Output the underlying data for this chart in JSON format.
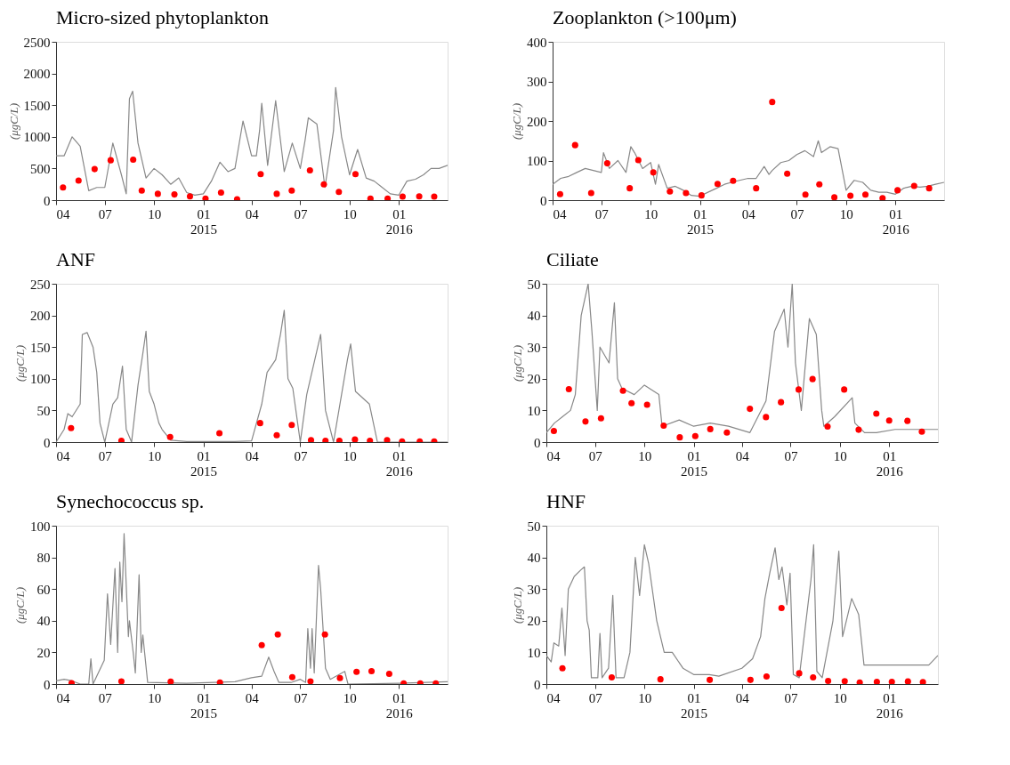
{
  "chart_data": [
    {
      "type": "line",
      "title": "Micro-sized phytoplankton",
      "ylabel": "(μgC/L)",
      "grid": false,
      "xlim": [
        "2014-04-01",
        "2016-04-01"
      ],
      "ylim": [
        0,
        2500
      ],
      "yticks": [
        0,
        500,
        1000,
        1500,
        2000,
        2500
      ],
      "xticks": [
        {
          "value": "2014-04-01",
          "label": "04"
        },
        {
          "value": "2014-07-01",
          "label": "07"
        },
        {
          "value": "2014-10-01",
          "label": "10"
        },
        {
          "value": "2015-01-01",
          "label": "01\n2015"
        },
        {
          "value": "2015-04-01",
          "label": "04"
        },
        {
          "value": "2015-07-01",
          "label": "07"
        },
        {
          "value": "2015-10-01",
          "label": "10"
        },
        {
          "value": "2016-01-01",
          "label": "01\n2016"
        }
      ],
      "series": [
        {
          "color": "#888888",
          "line_style": "solid",
          "x": [
            "2014-04-01",
            "2014-04-16",
            "2014-05-01",
            "2014-05-16",
            "2014-06-01",
            "2014-06-16",
            "2014-07-01",
            "2014-07-16",
            "2014-08-01",
            "2014-08-10",
            "2014-08-16",
            "2014-08-22",
            "2014-09-01",
            "2014-09-16",
            "2014-10-01",
            "2014-10-16",
            "2014-11-01",
            "2014-11-16",
            "2014-12-01",
            "2014-12-16",
            "2015-01-01",
            "2015-01-16",
            "2015-02-01",
            "2015-02-16",
            "2015-03-01",
            "2015-03-16",
            "2015-04-01",
            "2015-04-10",
            "2015-04-16",
            "2015-04-20",
            "2015-05-01",
            "2015-05-16",
            "2015-06-01",
            "2015-06-16",
            "2015-07-01",
            "2015-07-10",
            "2015-07-16",
            "2015-08-01",
            "2015-08-16",
            "2015-09-01",
            "2015-09-05",
            "2015-09-16",
            "2015-10-01",
            "2015-10-16",
            "2015-11-01",
            "2015-11-16",
            "2015-12-01",
            "2015-12-16",
            "2016-01-01",
            "2016-01-16",
            "2016-02-01",
            "2016-02-16",
            "2016-03-01",
            "2016-03-16",
            "2016-04-01"
          ],
          "values": [
            700,
            700,
            1000,
            850,
            150,
            200,
            200,
            900,
            400,
            100,
            1600,
            1720,
            900,
            350,
            500,
            400,
            250,
            350,
            120,
            80,
            100,
            300,
            600,
            450,
            500,
            1250,
            700,
            700,
            1100,
            1530,
            550,
            1570,
            450,
            900,
            500,
            950,
            1300,
            1200,
            200,
            1100,
            1780,
            1000,
            400,
            800,
            350,
            300,
            200,
            100,
            80,
            300,
            330,
            400,
            500,
            500,
            550
          ]
        },
        {
          "type": "scatter",
          "color": "#ff0000",
          "marker": "circle",
          "x": [
            "2014-04-14",
            "2014-05-13",
            "2014-06-12",
            "2014-07-12",
            "2014-08-23",
            "2014-09-08",
            "2014-10-08",
            "2014-11-08",
            "2014-12-07",
            "2015-01-05",
            "2015-02-03",
            "2015-03-05",
            "2015-04-18",
            "2015-05-18",
            "2015-06-15",
            "2015-07-19",
            "2015-08-14",
            "2015-09-11",
            "2015-10-12",
            "2015-11-09",
            "2015-12-11",
            "2016-01-08",
            "2016-02-08",
            "2016-03-07"
          ],
          "values": [
            200,
            310,
            490,
            630,
            640,
            150,
            100,
            90,
            60,
            25,
            120,
            15,
            410,
            100,
            150,
            470,
            250,
            130,
            410,
            25,
            25,
            55,
            60,
            55
          ]
        }
      ]
    },
    {
      "type": "line",
      "title": "Zooplankton (>100μm)",
      "ylabel": "(μgC/L)",
      "grid": false,
      "xlim": [
        "2014-04-01",
        "2016-04-01"
      ],
      "ylim": [
        0,
        400
      ],
      "yticks": [
        0,
        100,
        200,
        300,
        400
      ],
      "xticks": [
        {
          "value": "2014-04-01",
          "label": "04"
        },
        {
          "value": "2014-07-01",
          "label": "07"
        },
        {
          "value": "2014-10-01",
          "label": "10"
        },
        {
          "value": "2015-01-01",
          "label": "01\n2015"
        },
        {
          "value": "2015-04-01",
          "label": "04"
        },
        {
          "value": "2015-07-01",
          "label": "07"
        },
        {
          "value": "2015-10-01",
          "label": "10"
        },
        {
          "value": "2016-01-01",
          "label": "01\n2016"
        }
      ],
      "series": [
        {
          "color": "#888888",
          "line_style": "solid",
          "x": [
            "2014-04-01",
            "2014-04-16",
            "2014-05-01",
            "2014-05-16",
            "2014-06-01",
            "2014-06-16",
            "2014-07-01",
            "2014-07-05",
            "2014-07-16",
            "2014-08-01",
            "2014-08-16",
            "2014-08-25",
            "2014-09-01",
            "2014-09-16",
            "2014-10-01",
            "2014-10-10",
            "2014-10-16",
            "2014-11-01",
            "2014-11-16",
            "2014-12-01",
            "2014-12-16",
            "2015-01-01",
            "2015-01-16",
            "2015-02-01",
            "2015-02-16",
            "2015-03-01",
            "2015-03-16",
            "2015-04-01",
            "2015-04-16",
            "2015-05-01",
            "2015-05-10",
            "2015-05-16",
            "2015-06-01",
            "2015-06-16",
            "2015-07-01",
            "2015-07-16",
            "2015-08-01",
            "2015-08-10",
            "2015-08-16",
            "2015-09-01",
            "2015-09-16",
            "2015-10-01",
            "2015-10-16",
            "2015-11-01",
            "2015-11-16",
            "2015-12-01",
            "2015-12-16",
            "2016-01-01",
            "2016-01-16",
            "2016-02-01",
            "2016-02-16",
            "2016-03-01",
            "2016-03-16",
            "2016-04-01"
          ],
          "values": [
            40,
            55,
            60,
            70,
            80,
            75,
            70,
            120,
            80,
            100,
            70,
            135,
            120,
            80,
            95,
            40,
            90,
            30,
            35,
            25,
            12,
            10,
            20,
            30,
            40,
            45,
            50,
            55,
            55,
            85,
            65,
            75,
            95,
            100,
            115,
            125,
            110,
            150,
            120,
            135,
            130,
            25,
            50,
            45,
            25,
            20,
            20,
            15,
            30,
            35,
            33,
            35,
            40,
            45
          ]
        },
        {
          "type": "scatter",
          "color": "#ff0000",
          "marker": "circle",
          "x": [
            "2014-04-15",
            "2014-05-13",
            "2014-06-12",
            "2014-07-12",
            "2014-08-23",
            "2014-09-08",
            "2014-10-06",
            "2014-11-06",
            "2014-12-06",
            "2015-01-04",
            "2015-02-03",
            "2015-03-04",
            "2015-04-16",
            "2015-05-16",
            "2015-06-13",
            "2015-07-17",
            "2015-08-12",
            "2015-09-09",
            "2015-10-09",
            "2015-11-06",
            "2015-12-08",
            "2016-01-05",
            "2016-02-05",
            "2016-03-04"
          ],
          "values": [
            15,
            139,
            18,
            93,
            30,
            101,
            70,
            22,
            18,
            12,
            41,
            49,
            30,
            248,
            67,
            14,
            40,
            7,
            11,
            14,
            5,
            25,
            36,
            30
          ]
        }
      ]
    },
    {
      "type": "line",
      "title": "ANF",
      "ylabel": "(μgC/L)",
      "grid": false,
      "xlim": [
        "2014-04-01",
        "2016-04-01"
      ],
      "ylim": [
        0,
        250
      ],
      "yticks": [
        0,
        50,
        100,
        150,
        200,
        250
      ],
      "xticks": [
        {
          "value": "2014-04-01",
          "label": "04"
        },
        {
          "value": "2014-07-01",
          "label": "07"
        },
        {
          "value": "2014-10-01",
          "label": "10"
        },
        {
          "value": "2015-01-01",
          "label": "01\n2015"
        },
        {
          "value": "2015-04-01",
          "label": "04"
        },
        {
          "value": "2015-07-01",
          "label": "07"
        },
        {
          "value": "2015-10-01",
          "label": "10"
        },
        {
          "value": "2016-01-01",
          "label": "01\n2016"
        }
      ],
      "series": [
        {
          "color": "#888888",
          "line_style": "solid",
          "x": [
            "2014-04-01",
            "2014-04-16",
            "2014-04-23",
            "2014-05-01",
            "2014-05-16",
            "2014-05-20",
            "2014-05-29",
            "2014-06-09",
            "2014-06-16",
            "2014-06-22",
            "2014-07-01",
            "2014-07-16",
            "2014-07-25",
            "2014-08-03",
            "2014-08-10",
            "2014-08-20",
            "2014-09-01",
            "2014-09-10",
            "2014-09-16",
            "2014-09-22",
            "2014-10-01",
            "2014-10-10",
            "2014-10-16",
            "2014-11-01",
            "2014-12-01",
            "2015-03-01",
            "2015-04-01",
            "2015-04-20",
            "2015-04-30",
            "2015-05-16",
            "2015-05-25",
            "2015-06-01",
            "2015-06-08",
            "2015-06-17",
            "2015-07-01",
            "2015-07-13",
            "2015-08-08",
            "2015-08-17",
            "2015-09-01",
            "2015-09-27",
            "2015-10-03",
            "2015-10-12",
            "2015-11-07",
            "2015-11-22",
            "2016-04-01"
          ],
          "values": [
            0,
            20,
            45,
            40,
            60,
            170,
            173,
            150,
            110,
            30,
            0,
            60,
            70,
            120,
            20,
            0,
            90,
            140,
            175,
            80,
            60,
            30,
            20,
            3,
            1,
            1,
            2,
            60,
            110,
            130,
            170,
            208,
            100,
            85,
            0,
            75,
            170,
            50,
            0,
            130,
            155,
            80,
            60,
            0,
            0
          ]
        },
        {
          "type": "scatter",
          "color": "#ff0000",
          "marker": "circle",
          "x": [
            "2014-04-29",
            "2014-08-01",
            "2014-10-31",
            "2015-01-31",
            "2015-04-17",
            "2015-05-18",
            "2015-06-15",
            "2015-07-21",
            "2015-08-17",
            "2015-09-12",
            "2015-10-11",
            "2015-11-08",
            "2015-12-10",
            "2016-01-07",
            "2016-02-09",
            "2016-03-07"
          ],
          "values": [
            22,
            2,
            8,
            14,
            30,
            11,
            27,
            3,
            2,
            2,
            4,
            2,
            3,
            1,
            1,
            1
          ]
        }
      ]
    },
    {
      "type": "line",
      "title": "Ciliate",
      "ylabel": "(μgC/L)",
      "grid": false,
      "xlim": [
        "2014-04-01",
        "2016-04-01"
      ],
      "ylim": [
        0,
        50
      ],
      "yticks": [
        0,
        10,
        20,
        30,
        40,
        50
      ],
      "xticks": [
        {
          "value": "2014-04-01",
          "label": "04"
        },
        {
          "value": "2014-07-01",
          "label": "07"
        },
        {
          "value": "2014-10-01",
          "label": "10"
        },
        {
          "value": "2015-01-01",
          "label": "01\n2015"
        },
        {
          "value": "2015-04-01",
          "label": "04"
        },
        {
          "value": "2015-07-01",
          "label": "07"
        },
        {
          "value": "2015-10-01",
          "label": "10"
        },
        {
          "value": "2016-01-01",
          "label": "01\n2016"
        }
      ],
      "series": [
        {
          "color": "#888888",
          "line_style": "solid",
          "x": [
            "2014-04-01",
            "2014-04-16",
            "2014-05-01",
            "2014-05-16",
            "2014-05-25",
            "2014-06-05",
            "2014-06-18",
            "2014-06-25",
            "2014-07-05",
            "2014-07-10",
            "2014-07-27",
            "2014-08-06",
            "2014-08-12",
            "2014-08-20",
            "2014-09-12",
            "2014-10-01",
            "2014-10-28",
            "2014-11-03",
            "2014-12-05",
            "2015-01-01",
            "2015-02-01",
            "2015-03-07",
            "2015-04-16",
            "2015-05-01",
            "2015-05-16",
            "2015-06-01",
            "2015-06-19",
            "2015-06-26",
            "2015-07-04",
            "2015-07-10",
            "2015-07-21",
            "2015-08-05",
            "2015-08-18",
            "2015-08-28",
            "2015-09-01",
            "2015-09-21",
            "2015-10-24",
            "2015-10-29",
            "2015-11-16",
            "2015-12-08",
            "2016-01-12",
            "2016-02-15",
            "2016-04-01"
          ],
          "values": [
            3,
            6,
            8,
            10,
            15,
            40,
            50,
            35,
            10,
            30,
            25,
            44,
            20,
            17,
            15,
            18,
            15,
            5,
            7,
            5,
            6,
            5,
            3,
            8,
            13,
            35,
            42,
            30,
            50,
            25,
            10,
            39,
            34,
            10,
            5,
            8,
            14,
            6,
            3,
            3,
            4,
            4,
            4
          ]
        },
        {
          "type": "scatter",
          "color": "#ff0000",
          "marker": "circle",
          "x": [
            "2014-04-15",
            "2014-05-13",
            "2014-06-13",
            "2014-07-12",
            "2014-08-22",
            "2014-09-07",
            "2014-10-06",
            "2014-11-06",
            "2014-12-06",
            "2015-01-04",
            "2015-02-01",
            "2015-03-04",
            "2015-04-16",
            "2015-05-16",
            "2015-06-13",
            "2015-07-16",
            "2015-08-11",
            "2015-09-08",
            "2015-10-09",
            "2015-11-05",
            "2015-12-08",
            "2016-01-01",
            "2016-02-04",
            "2016-03-02"
          ],
          "values": [
            3.5,
            16.7,
            6.5,
            7.5,
            16.2,
            12.3,
            11.8,
            5.2,
            1.5,
            1.9,
            4.1,
            3,
            10.5,
            7.9,
            12.6,
            16.6,
            19.9,
            4.9,
            16.6,
            3.9,
            9,
            6.8,
            6.7,
            3.3
          ]
        }
      ]
    },
    {
      "type": "line",
      "title": "Synechococcus sp.",
      "ylabel": "(μgC/L)",
      "grid": false,
      "xlim": [
        "2014-04-01",
        "2016-04-01"
      ],
      "ylim": [
        0,
        100
      ],
      "yticks": [
        0,
        20,
        40,
        60,
        80,
        100
      ],
      "xticks": [
        {
          "value": "2014-04-01",
          "label": "04"
        },
        {
          "value": "2014-07-01",
          "label": "07"
        },
        {
          "value": "2014-10-01",
          "label": "10"
        },
        {
          "value": "2015-01-01",
          "label": "01\n2015"
        },
        {
          "value": "2015-04-01",
          "label": "04"
        },
        {
          "value": "2015-07-01",
          "label": "07"
        },
        {
          "value": "2015-10-01",
          "label": "10"
        },
        {
          "value": "2016-01-01",
          "label": "01\n2016"
        }
      ],
      "series": [
        {
          "color": "#888888",
          "line_style": "solid",
          "x": [
            "2014-04-01",
            "2014-04-16",
            "2014-05-01",
            "2014-05-16",
            "2014-06-01",
            "2014-06-05",
            "2014-06-09",
            "2014-06-30",
            "2014-07-06",
            "2014-07-12",
            "2014-07-20",
            "2014-07-25",
            "2014-07-29",
            "2014-08-02",
            "2014-08-06",
            "2014-08-14",
            "2014-08-16",
            "2014-08-23",
            "2014-08-27",
            "2014-09-03",
            "2014-09-07",
            "2014-09-10",
            "2014-09-19",
            "2014-12-01",
            "2015-03-01",
            "2015-04-01",
            "2015-04-20",
            "2015-05-03",
            "2015-05-13",
            "2015-05-22",
            "2015-06-14",
            "2015-07-01",
            "2015-07-11",
            "2015-07-15",
            "2015-07-20",
            "2015-07-23",
            "2015-07-27",
            "2015-08-04",
            "2015-08-08",
            "2015-08-17",
            "2015-08-26",
            "2015-09-22",
            "2015-09-28",
            "2016-01-01",
            "2016-04-01"
          ],
          "values": [
            2,
            3,
            2,
            0,
            0,
            16,
            0,
            15,
            57,
            25,
            73,
            20,
            77,
            52,
            95,
            30,
            40,
            20,
            7,
            69,
            20,
            31,
            1,
            0.5,
            1.5,
            4,
            5,
            17,
            8,
            1,
            1,
            3,
            1,
            35,
            10,
            35,
            7,
            75,
            60,
            10,
            3,
            8,
            0,
            0.5,
            1.5
          ]
        },
        {
          "type": "scatter",
          "color": "#ff0000",
          "marker": "circle",
          "x": [
            "2014-04-30",
            "2014-08-01",
            "2014-11-01",
            "2015-02-01",
            "2015-04-20",
            "2015-05-20",
            "2015-06-16",
            "2015-07-20",
            "2015-08-16",
            "2015-09-13",
            "2015-10-14",
            "2015-11-11",
            "2015-12-14",
            "2016-01-10",
            "2016-02-10",
            "2016-03-10"
          ],
          "values": [
            0.5,
            1.7,
            1.5,
            1,
            24.6,
            31.3,
            4.4,
            1.7,
            31.3,
            3.8,
            7.7,
            8.1,
            6.5,
            0.4,
            0.4,
            0.4
          ]
        }
      ]
    },
    {
      "type": "line",
      "title": "HNF",
      "ylabel": "(μgC/L)",
      "grid": false,
      "xlim": [
        "2014-04-01",
        "2016-04-01"
      ],
      "ylim": [
        0,
        50
      ],
      "yticks": [
        0,
        10,
        20,
        30,
        40,
        50
      ],
      "xticks": [
        {
          "value": "2014-04-01",
          "label": "04"
        },
        {
          "value": "2014-07-01",
          "label": "07"
        },
        {
          "value": "2014-10-01",
          "label": "10"
        },
        {
          "value": "2015-01-01",
          "label": "01\n2015"
        },
        {
          "value": "2015-04-01",
          "label": "04"
        },
        {
          "value": "2015-07-01",
          "label": "07"
        },
        {
          "value": "2015-10-01",
          "label": "10"
        },
        {
          "value": "2016-01-01",
          "label": "01\n2016"
        }
      ],
      "series": [
        {
          "color": "#888888",
          "line_style": "solid",
          "x": [
            "2014-04-01",
            "2014-04-10",
            "2014-04-15",
            "2014-04-24",
            "2014-04-30",
            "2014-05-06",
            "2014-05-12",
            "2014-05-23",
            "2014-06-04",
            "2014-06-11",
            "2014-06-16",
            "2014-06-20",
            "2014-06-24",
            "2014-07-06",
            "2014-07-10",
            "2014-07-14",
            "2014-07-26",
            "2014-08-03",
            "2014-08-09",
            "2014-08-24",
            "2014-09-04",
            "2014-09-14",
            "2014-09-22",
            "2014-10-01",
            "2014-10-09",
            "2014-10-24",
            "2014-11-07",
            "2014-11-22",
            "2014-12-12",
            "2015-01-01",
            "2015-01-30",
            "2015-02-17",
            "2015-04-01",
            "2015-04-21",
            "2015-05-06",
            "2015-05-14",
            "2015-05-23",
            "2015-06-02",
            "2015-06-09",
            "2015-06-15",
            "2015-06-24",
            "2015-06-30",
            "2015-07-06",
            "2015-07-17",
            "2015-08-08",
            "2015-08-13",
            "2015-08-19",
            "2015-08-29",
            "2015-09-18",
            "2015-09-29",
            "2015-10-06",
            "2015-10-23",
            "2015-11-05",
            "2015-11-15",
            "2015-12-08",
            "2016-01-01",
            "2016-02-06",
            "2016-03-15",
            "2016-04-01"
          ],
          "values": [
            9,
            7,
            13,
            12,
            24,
            9,
            30,
            34,
            36,
            37,
            20,
            17,
            2,
            2,
            16,
            2,
            5,
            28,
            2,
            2,
            10,
            40,
            28,
            44,
            38,
            20,
            10,
            10,
            5,
            3,
            3,
            2.5,
            5,
            8,
            15,
            27,
            35,
            43,
            33,
            37,
            25,
            35,
            3,
            2,
            33,
            44,
            4,
            2,
            20,
            42,
            15,
            27,
            22,
            6,
            6,
            6,
            6,
            6,
            9
          ]
        },
        {
          "type": "scatter",
          "color": "#ff0000",
          "marker": "circle",
          "x": [
            "2014-05-01",
            "2014-08-01",
            "2014-10-31",
            "2015-01-31",
            "2015-04-17",
            "2015-05-17",
            "2015-06-14",
            "2015-07-17",
            "2015-08-12",
            "2015-09-09",
            "2015-10-10",
            "2015-11-07",
            "2015-12-09",
            "2016-01-06",
            "2016-02-05",
            "2016-03-04"
          ],
          "values": [
            5,
            2.1,
            1.5,
            1.3,
            1.3,
            2.4,
            24,
            3.4,
            2.1,
            1,
            0.9,
            0.5,
            0.7,
            0.7,
            0.8,
            0.6
          ]
        }
      ]
    }
  ]
}
